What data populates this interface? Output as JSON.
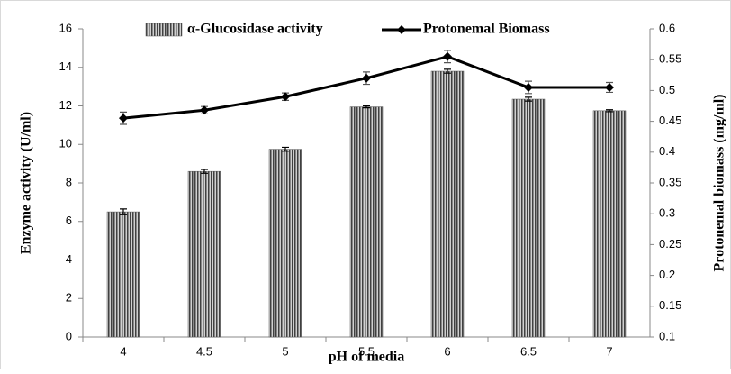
{
  "chart_data": {
    "type": "bar-line",
    "x_label": "pH of media",
    "y_label": "Enzyme activity (U/ml)",
    "y2_label": "Protonemal biomass (mg/ml)",
    "categories": [
      "4",
      "4.5",
      "5",
      "5.5",
      "6",
      "6.5",
      "7"
    ],
    "series": [
      {
        "name": "α-Glucosidase activity",
        "type": "bar",
        "color": "#808080",
        "values": [
          6.5,
          8.6,
          9.75,
          11.95,
          13.8,
          12.35,
          11.75
        ],
        "errors": [
          0.15,
          0.1,
          0.1,
          0.05,
          0.1,
          0.1,
          0.05
        ]
      },
      {
        "name": "Protonemal Biomass",
        "type": "line",
        "axis": "y2",
        "color": "#000000",
        "values": [
          0.455,
          0.468,
          0.49,
          0.52,
          0.555,
          0.505,
          0.505
        ],
        "errors": [
          0.01,
          0.006,
          0.006,
          0.01,
          0.01,
          0.01,
          0.008
        ]
      }
    ],
    "ylim": [
      0,
      16
    ],
    "yticks": [
      0,
      2,
      4,
      6,
      8,
      10,
      12,
      14,
      16
    ],
    "y2lim": [
      0.1,
      0.6
    ],
    "y2ticks": [
      0.1,
      0.15,
      0.2,
      0.25,
      0.3,
      0.35,
      0.4,
      0.45,
      0.5,
      0.55,
      0.6
    ],
    "legend": "top"
  }
}
